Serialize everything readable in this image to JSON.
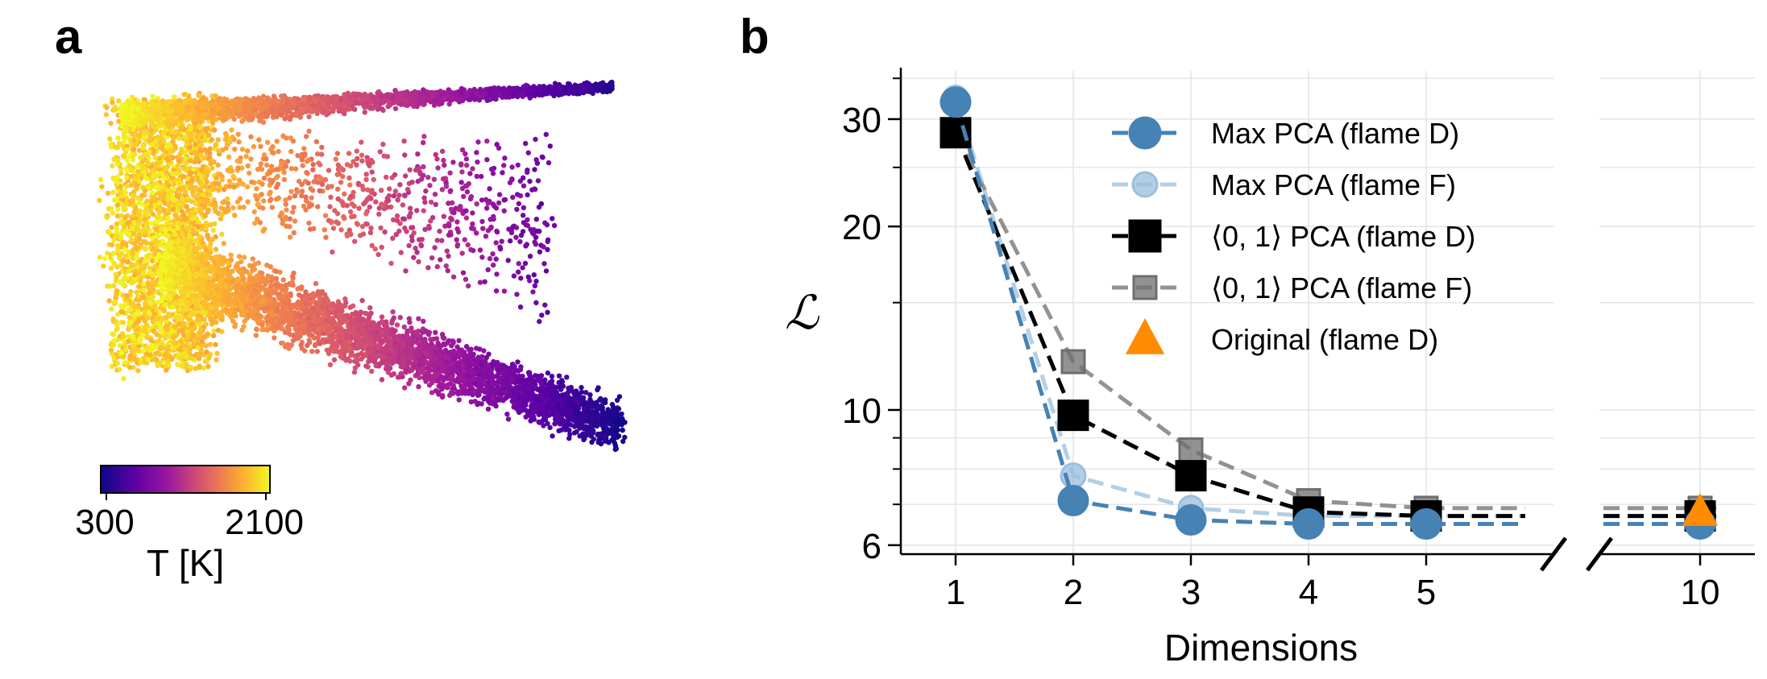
{
  "panels": {
    "a": {
      "label": "a"
    },
    "b": {
      "label": "b"
    }
  },
  "colorbar": {
    "label": "T [K]",
    "min_label": "300",
    "max_label": "2100",
    "colormap": "plasma"
  },
  "chart_data": [
    {
      "type": "scatter",
      "panel": "a",
      "xlabel": "",
      "ylabel": "",
      "color_variable": "T [K]",
      "color_range": [
        300,
        2100
      ],
      "axes_visible": false
    },
    {
      "type": "line",
      "panel": "b",
      "xlabel": "Dimensions",
      "ylabel": "ℒ",
      "y_scale": "log",
      "ylim": [
        5.8,
        36
      ],
      "yticks": [
        6,
        10,
        20,
        30
      ],
      "xticks": [
        1,
        2,
        3,
        4,
        5,
        10
      ],
      "x_axis_break": [
        5,
        10
      ],
      "grid": true,
      "legend_position": "top-right",
      "series": [
        {
          "name": "Max PCA (flame D)",
          "x": [
            1,
            2,
            3,
            4,
            5,
            10
          ],
          "y": [
            32.0,
            7.1,
            6.6,
            6.5,
            6.5,
            6.5
          ],
          "color": "#4682b4",
          "marker": "circle",
          "dashed": true
        },
        {
          "name": "Max PCA (flame F)",
          "x": [
            1,
            2,
            3,
            4,
            5,
            10
          ],
          "y": [
            32.5,
            7.8,
            6.9,
            6.7,
            6.7,
            6.7
          ],
          "color": "#9bbfdc",
          "marker": "circle",
          "dashed": true
        },
        {
          "name": "⟨0, 1⟩ PCA (flame D)",
          "x": [
            1,
            2,
            3,
            4,
            5,
            10
          ],
          "y": [
            28.5,
            9.8,
            7.8,
            6.8,
            6.7,
            6.7
          ],
          "color": "#000000",
          "marker": "square",
          "dashed": true
        },
        {
          "name": "⟨0, 1⟩ PCA (flame F)",
          "x": [
            1,
            2,
            3,
            4,
            5,
            10
          ],
          "y": [
            28.5,
            12.0,
            8.6,
            7.1,
            6.9,
            6.9
          ],
          "color": "#6e6e6e",
          "marker": "square",
          "dashed": true
        },
        {
          "name": "Original (flame D)",
          "x": [
            10
          ],
          "y": [
            6.8
          ],
          "color": "#ff8c00",
          "marker": "triangle",
          "dashed": false
        }
      ]
    }
  ]
}
